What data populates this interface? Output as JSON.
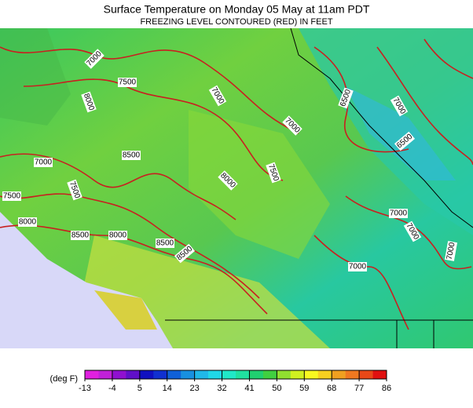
{
  "header": {
    "title": "Surface Temperature on Monday 05 May at 11am PDT",
    "subtitle": "FREEZING LEVEL CONTOURED (RED) IN FEET"
  },
  "contour_labels": [
    "7000",
    "7500",
    "8000",
    "7000",
    "6500",
    "7000",
    "7000",
    "6500",
    "8500",
    "7000",
    "8000",
    "7500",
    "7500",
    "7500",
    "7000",
    "7000",
    "8000",
    "8000",
    "8500",
    "8500",
    "8500",
    "7000",
    "7000"
  ],
  "legend": {
    "unit_label": "(deg F)",
    "ticks": [
      -13,
      -4,
      5,
      14,
      23,
      32,
      41,
      50,
      59,
      68,
      77,
      86
    ],
    "colors": [
      "#e020e0",
      "#c020d8",
      "#9010d0",
      "#6010c8",
      "#1010c0",
      "#1030d0",
      "#1060d8",
      "#1890e0",
      "#20b8e8",
      "#20d8e8",
      "#20e8c8",
      "#20e0a0",
      "#20d070",
      "#40d040",
      "#90e030",
      "#d0f020",
      "#f8f820",
      "#f8d020",
      "#f0a020",
      "#f07820",
      "#e84818",
      "#e01010"
    ]
  }
}
